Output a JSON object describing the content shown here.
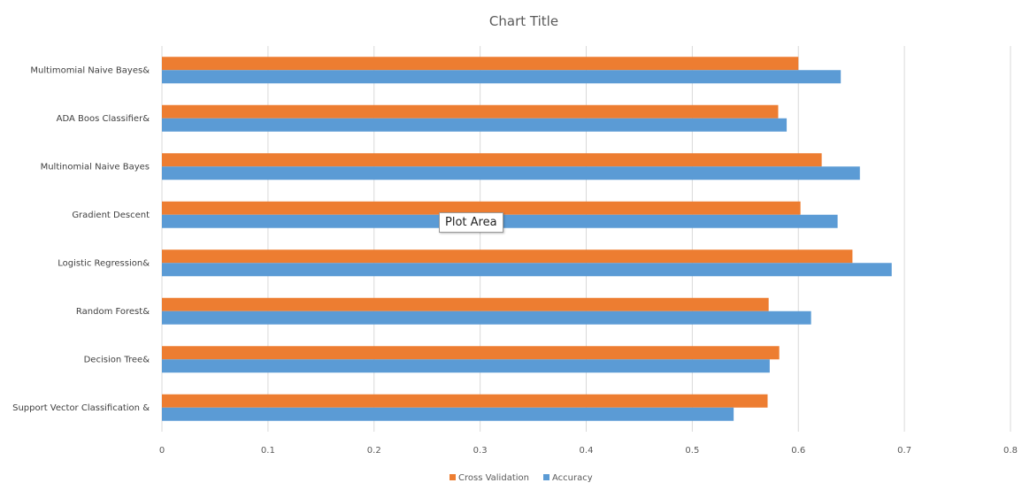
{
  "chart_data": {
    "type": "bar",
    "orientation": "horizontal",
    "title": "Chart Title",
    "categories": [
      "Multimomial Naive Bayes&",
      "ADA Boos Classifier&",
      "Multinomial Naive Bayes",
      "Gradient Descent",
      "Logistic Regression&",
      "Random Forest&",
      "Decision Tree&",
      "Support Vector Classification &"
    ],
    "series": [
      {
        "name": "Cross Validation",
        "color": "#ED7D31",
        "values": [
          0.6,
          0.581,
          0.622,
          0.602,
          0.651,
          0.572,
          0.582,
          0.571
        ]
      },
      {
        "name": "Accuracy",
        "color": "#5B9BD5",
        "values": [
          0.64,
          0.589,
          0.658,
          0.637,
          0.688,
          0.612,
          0.573,
          0.539
        ]
      }
    ],
    "xlim": [
      0,
      0.8
    ],
    "xticks": [
      "0",
      "0.1",
      "0.2",
      "0.3",
      "0.4",
      "0.5",
      "0.6",
      "0.7",
      "0.8"
    ],
    "xlabel": "",
    "ylabel": "",
    "grid": true,
    "legend_position": "bottom"
  },
  "tooltip": {
    "text": "Plot Area"
  }
}
